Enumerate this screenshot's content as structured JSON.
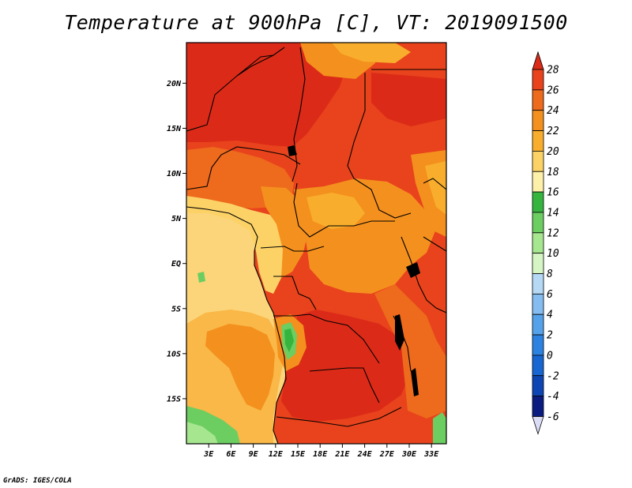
{
  "title": "Temperature at 900hPa [C], VT: 2019091500",
  "footer": "GrADS: IGES/COLA",
  "map": {
    "lon_range": [
      0,
      35
    ],
    "lat_range": [
      -20,
      24.5
    ],
    "lat_ticks": [
      {
        "lat": 20,
        "label": "20N"
      },
      {
        "lat": 15,
        "label": "15N"
      },
      {
        "lat": 10,
        "label": "10N"
      },
      {
        "lat": 5,
        "label": "5N"
      },
      {
        "lat": 0,
        "label": "EQ"
      },
      {
        "lat": -5,
        "label": "5S"
      },
      {
        "lat": -10,
        "label": "10S"
      },
      {
        "lat": -15,
        "label": "15S"
      }
    ],
    "lon_ticks": [
      {
        "lon": 3,
        "label": "3E"
      },
      {
        "lon": 6,
        "label": "6E"
      },
      {
        "lon": 9,
        "label": "9E"
      },
      {
        "lon": 12,
        "label": "12E"
      },
      {
        "lon": 15,
        "label": "15E"
      },
      {
        "lon": 18,
        "label": "18E"
      },
      {
        "lon": 21,
        "label": "21E"
      },
      {
        "lon": 24,
        "label": "24E"
      },
      {
        "lon": 27,
        "label": "27E"
      },
      {
        "lon": 30,
        "label": "30E"
      },
      {
        "lon": 33,
        "label": "33E"
      }
    ]
  },
  "colorbar": {
    "levels": [
      "28",
      "26",
      "24",
      "22",
      "20",
      "18",
      "16",
      "14",
      "12",
      "10",
      "8",
      "6",
      "4",
      "2",
      "0",
      "-2",
      "-4",
      "-6"
    ],
    "colors": [
      "#dc2a18",
      "#e8431c",
      "#ee6a1c",
      "#f4901e",
      "#f8ae2c",
      "#fcd267",
      "#fdf0a8",
      "#36b53e",
      "#6ccd61",
      "#a6e68f",
      "#d6f5c4",
      "#b5d8f5",
      "#86bdf0",
      "#55a2ea",
      "#2c82e0",
      "#1766d2",
      "#0d46b4",
      "#0a1c80",
      "#040a50"
    ],
    "top_color": "#dc2a18",
    "bottom_color": "#dbdcf5"
  },
  "fill_colors": {
    "ocean_far": "#fcd57a",
    "ocean_mid": "#f9b847",
    "ocean_near": "#f4901e",
    "ocean_green": "#6ccd61",
    "ocean_lightgreen": "#a6e68f",
    "land_hot": "#dc2a18",
    "land_warm": "#e8431c",
    "land_orange": "#ee6a1c",
    "land_amber": "#f4901e",
    "land_yellow": "#f8ae2c",
    "land_pale": "#fcd267",
    "plateau_green": "#36b53e",
    "plateau_light": "#6ccd61",
    "coast_line": "#000000"
  }
}
